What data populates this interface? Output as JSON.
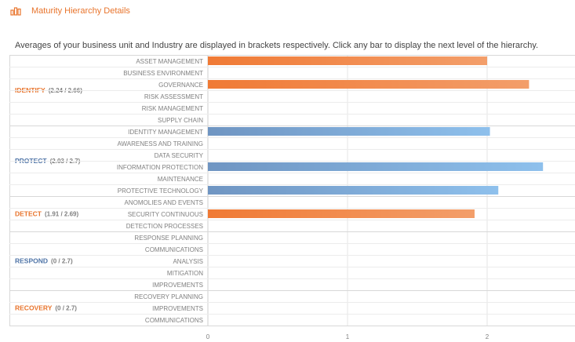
{
  "header": {
    "icon": "bar-chart-icon",
    "title": "Maturity Hierarchy Details"
  },
  "description": "Averages of your business unit and Industry are displayed in brackets respectively. Click any bar to display the next level of the hierarchy.",
  "colors": {
    "accent": "#e8742c",
    "orange_bar_start": "#f07a35",
    "orange_bar_end": "#f39e6a",
    "blue_bar_start": "#6f95c2",
    "blue_bar_end": "#8ec0ec",
    "blue_label": "#4f74a7",
    "gray_text": "#808080",
    "grid": "#e5e5e5"
  },
  "chart_data": {
    "type": "bar",
    "orientation": "horizontal",
    "x_ticks": [
      "0",
      "1",
      "2"
    ],
    "xlim": [
      0,
      2.6
    ],
    "grid": true,
    "groups": [
      {
        "name": "IDENTIFY",
        "stats": "(2.24 / 2.66)",
        "color": "orange",
        "categories": [
          "ASSET MANAGEMENT",
          "BUSINESS ENVIRONMENT",
          "GOVERNANCE",
          "RISK ASSESSMENT",
          "RISK MANAGEMENT",
          "SUPPLY CHAIN"
        ],
        "values": [
          2.0,
          0,
          2.3,
          0,
          0,
          0
        ]
      },
      {
        "name": "PROTECT",
        "stats": "(2.03 / 2.7)",
        "color": "blue",
        "categories": [
          "IDENTITY MANAGEMENT",
          "AWARENESS AND TRAINING",
          "DATA SECURITY",
          "INFORMATION PROTECTION",
          "MAINTENANCE",
          "PROTECTIVE TECHNOLOGY"
        ],
        "values": [
          2.02,
          0,
          0,
          2.4,
          0,
          2.08
        ]
      },
      {
        "name": "DETECT",
        "stats": "(1.91 / 2.69)",
        "color": "orange",
        "categories": [
          "ANOMOLIES AND EVENTS",
          "SECURITY CONTINUOUS",
          "DETECTION PROCESSES"
        ],
        "values": [
          0,
          1.91,
          0
        ]
      },
      {
        "name": "RESPOND",
        "stats": "(0 / 2.7)",
        "color": "blue",
        "categories": [
          "RESPONSE PLANNING",
          "COMMUNICATIONS",
          "ANALYSIS",
          "MITIGATION",
          "IMPROVEMENTS"
        ],
        "values": [
          0,
          0,
          0,
          0,
          0
        ]
      },
      {
        "name": "RECOVERY",
        "stats": "(0 / 2.7)",
        "color": "orange",
        "categories": [
          "RECOVERY PLANNING",
          "IMPROVEMENTS",
          "COMMUNICATIONS"
        ],
        "values": [
          0,
          0,
          0
        ]
      }
    ]
  }
}
